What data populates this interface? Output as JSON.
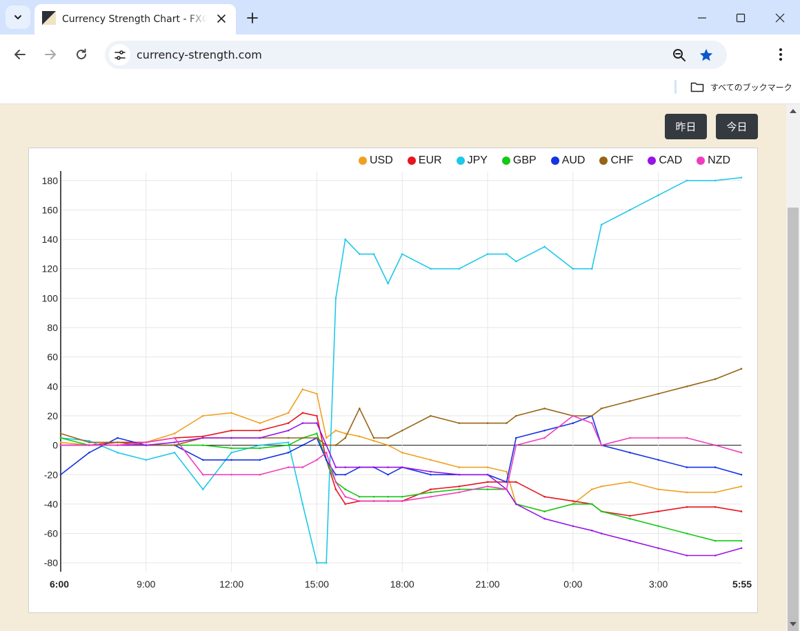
{
  "browser": {
    "tab_title": "Currency Strength Chart - FXの通貨強弱",
    "url": "currency-strength.com",
    "bookmarks_label": "すべてのブックマーク"
  },
  "page": {
    "yesterday_button": "昨日",
    "today_button": "今日"
  },
  "colors": {
    "USD": "#f0a020",
    "EUR": "#e8141e",
    "JPY": "#1ec8e8",
    "GBP": "#14c814",
    "AUD": "#1432e6",
    "CHF": "#966414",
    "CAD": "#9614e6",
    "NZD": "#f03cbe"
  },
  "chart_data": {
    "type": "line",
    "title": "",
    "xlabel": "",
    "ylabel": "",
    "x_ticks": [
      "6:00",
      "9:00",
      "12:00",
      "15:00",
      "18:00",
      "21:00",
      "0:00",
      "3:00",
      "5:55"
    ],
    "x_range": [
      "6:00",
      "5:55"
    ],
    "y_ticks": [
      180,
      160,
      140,
      120,
      100,
      80,
      60,
      40,
      20,
      0,
      -20,
      -40,
      -60,
      -80
    ],
    "ylim": [
      -86,
      186
    ],
    "grid": true,
    "legend_position": "top-right",
    "x": [
      "6:00",
      "7:00",
      "8:00",
      "9:00",
      "10:00",
      "11:00",
      "12:00",
      "13:00",
      "14:00",
      "14:30",
      "15:00",
      "15:20",
      "15:40",
      "16:00",
      "16:30",
      "17:00",
      "17:30",
      "18:00",
      "19:00",
      "20:00",
      "21:00",
      "21:40",
      "22:00",
      "23:00",
      "0:00",
      "0:40",
      "1:00",
      "2:00",
      "3:00",
      "4:00",
      "5:00",
      "5:55"
    ],
    "series": [
      {
        "name": "USD",
        "values": [
          2,
          0,
          0,
          2,
          8,
          20,
          22,
          15,
          22,
          38,
          35,
          5,
          10,
          8,
          6,
          3,
          0,
          -5,
          -10,
          -15,
          -15,
          -18,
          -40,
          -45,
          -40,
          -30,
          -28,
          -25,
          -30,
          -32,
          -32,
          -28
        ]
      },
      {
        "name": "EUR",
        "values": [
          0,
          0,
          2,
          2,
          5,
          6,
          10,
          10,
          15,
          22,
          20,
          -10,
          -30,
          -40,
          -38,
          -38,
          -38,
          -38,
          -30,
          -28,
          -25,
          -25,
          -25,
          -35,
          -38,
          -40,
          -45,
          -48,
          -45,
          -42,
          -42,
          -45
        ]
      },
      {
        "name": "JPY",
        "values": [
          5,
          3,
          -5,
          -10,
          -5,
          -30,
          -5,
          0,
          2,
          -40,
          -80,
          -80,
          100,
          140,
          130,
          130,
          110,
          130,
          120,
          120,
          130,
          130,
          125,
          135,
          120,
          120,
          150,
          160,
          170,
          180,
          180,
          182
        ]
      },
      {
        "name": "GBP",
        "values": [
          5,
          0,
          0,
          0,
          0,
          0,
          -2,
          -2,
          0,
          5,
          8,
          -10,
          -25,
          -30,
          -35,
          -35,
          -35,
          -35,
          -32,
          -30,
          -30,
          -30,
          -40,
          -45,
          -40,
          -40,
          -45,
          -50,
          -55,
          -60,
          -65,
          -65
        ]
      },
      {
        "name": "AUD",
        "values": [
          -20,
          -5,
          5,
          0,
          0,
          -10,
          -10,
          -10,
          -5,
          0,
          5,
          -10,
          -20,
          -20,
          -15,
          -15,
          -20,
          -15,
          -20,
          -20,
          -20,
          -25,
          5,
          10,
          15,
          20,
          0,
          -5,
          -10,
          -15,
          -15,
          -20
        ]
      },
      {
        "name": "CHF",
        "values": [
          8,
          2,
          2,
          0,
          0,
          5,
          5,
          5,
          5,
          5,
          5,
          0,
          0,
          5,
          25,
          5,
          5,
          10,
          20,
          15,
          15,
          15,
          20,
          25,
          20,
          20,
          25,
          30,
          35,
          40,
          45,
          52
        ]
      },
      {
        "name": "CAD",
        "values": [
          0,
          0,
          0,
          0,
          2,
          5,
          5,
          5,
          10,
          15,
          15,
          0,
          -15,
          -15,
          -15,
          -15,
          -15,
          -15,
          -18,
          -20,
          -20,
          -30,
          -40,
          -50,
          -55,
          -58,
          -60,
          -65,
          -70,
          -75,
          -75,
          -70
        ]
      },
      {
        "name": "NZD",
        "values": [
          0,
          0,
          0,
          2,
          5,
          -20,
          -20,
          -20,
          -15,
          -15,
          -10,
          -5,
          -25,
          -35,
          -38,
          -38,
          -38,
          -38,
          -35,
          -32,
          -28,
          -30,
          0,
          5,
          20,
          15,
          0,
          5,
          5,
          5,
          0,
          -5
        ]
      }
    ]
  }
}
